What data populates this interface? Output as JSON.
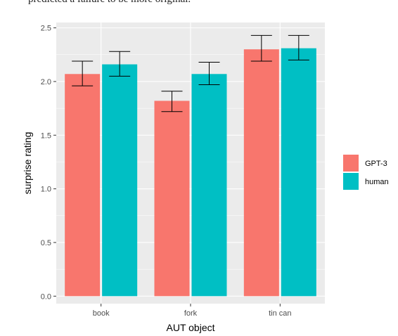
{
  "header_text": "predicted a failure to be more original.",
  "chart_data": {
    "type": "bar",
    "categories": [
      "book",
      "fork",
      "tin can"
    ],
    "series": [
      {
        "name": "GPT-3",
        "color": "#F8766D",
        "values": [
          2.07,
          1.82,
          2.3
        ],
        "err_low": [
          1.96,
          1.72,
          2.19
        ],
        "err_high": [
          2.19,
          1.91,
          2.43
        ]
      },
      {
        "name": "human",
        "color": "#00BFC4",
        "values": [
          2.16,
          2.07,
          2.31
        ],
        "err_low": [
          2.05,
          1.97,
          2.2
        ],
        "err_high": [
          2.28,
          2.18,
          2.43
        ]
      }
    ],
    "xlabel": "AUT object",
    "ylabel": "surprise rating",
    "ylim": [
      -0.07,
      2.55
    ],
    "yticks": [
      "0.0",
      "0.5",
      "1.0",
      "1.5",
      "2.0",
      "2.5"
    ],
    "grid": true,
    "legend_position": "right",
    "panel_background": "#EBEBEB"
  }
}
